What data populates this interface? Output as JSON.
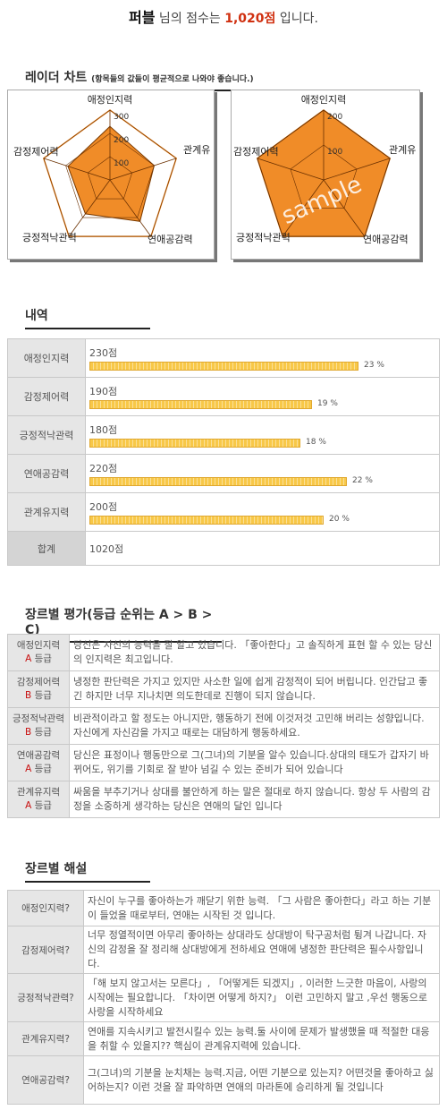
{
  "header": {
    "name": "퍼블",
    "mid": " 님의 점수는 ",
    "score": "1,020점",
    "end": " 입니다."
  },
  "radar": {
    "title": "레이더 차트",
    "note": "(항목들의 값들이 평균적으로 나와야 좋습니다.)",
    "watermark": "sample",
    "accent": "#f08c28"
  },
  "chart_data": [
    {
      "type": "radar",
      "categories": [
        "애정인지력",
        "관계유",
        "연애공감력",
        "긍정적낙관력",
        "감정제어력"
      ],
      "series": [
        {
          "values": [
            230,
            200,
            220,
            180,
            190
          ]
        }
      ],
      "ticks": [
        "100",
        "200",
        "300"
      ],
      "range": [
        0,
        300
      ]
    },
    {
      "type": "radar",
      "categories": [
        "애정인지력",
        "관계유",
        "연애공감력",
        "긍정적낙관력",
        "감정제어력"
      ],
      "series": [
        {
          "values": [
            200,
            200,
            200,
            200,
            200
          ]
        }
      ],
      "ticks": [
        "100",
        "200"
      ],
      "range": [
        0,
        200
      ]
    }
  ],
  "history": {
    "title": "내역",
    "rows": [
      {
        "label": "애정인지력",
        "value": "230점",
        "pct": "23 %",
        "ratio": 0.23
      },
      {
        "label": "감정제어력",
        "value": "190점",
        "pct": "19 %",
        "ratio": 0.19
      },
      {
        "label": "긍정적낙관력",
        "value": "180점",
        "pct": "18 %",
        "ratio": 0.18
      },
      {
        "label": "연애공감력",
        "value": "220점",
        "pct": "22 %",
        "ratio": 0.22
      },
      {
        "label": "관계유지력",
        "value": "200점",
        "pct": "20 %",
        "ratio": 0.2
      }
    ],
    "total_label": "합계",
    "total_value": "1020점"
  },
  "evaluation": {
    "title": "장르별 평가(등급 순위는 A > B > C)",
    "rows": [
      {
        "label": "애정인지력",
        "grade": "A",
        "grade_suffix": " 등급",
        "text": "당신은 자신의 능력을 잘 알고 있습니다. 「좋아한다」고 솔직하게 표현 할 수 있는 당신의 인지력은 최고입니다."
      },
      {
        "label": "감정제어력",
        "grade": "B",
        "grade_suffix": " 등급",
        "text": "냉정한 판단력은 가지고 있지만 사소한 일에 쉽게 감정적이 되어 버립니다. 인간답고 좋긴 하지만 너무 지나치면 의도한데로 진행이 되지 않습니다."
      },
      {
        "label": "긍정적낙관력",
        "grade": "B",
        "grade_prefix": "력 ",
        "grade_suffix": " 등급",
        "text": "비관적이라고 할 정도는 아니지만, 행동하기 전에 이것저것 고민해 버리는 성향입니다. 자신에게 자신감을 가지고 때로는 대담하게 행동하세요."
      },
      {
        "label": "연애공감력",
        "grade": "A",
        "grade_suffix": " 등급",
        "text": "당신은 표정이나 행동만으로 그(그녀)의 기분을 알수 있습니다.상대의 태도가 갑자기 바뀌어도, 위기를 기회로 잘 받아 넘길 수 있는 준비가 되어 있습니다"
      },
      {
        "label": "관계유지력",
        "grade": "A",
        "grade_suffix": " 등급",
        "text": "싸움을 부추기거나 상대를 불안하게 하는 말은 절대로 하지 않습니다. 항상 두 사람의 감정을 소중하게 생각하는 당신은 연애의 달인 입니다"
      }
    ]
  },
  "interpretation": {
    "title": "장르별 해설",
    "rows": [
      {
        "label": "애정인지력?",
        "text": "자신이 누구를 좋아하는가 깨닫기 위한 능력. 「그 사람은 좋아한다」라고 하는 기분이 들었을 때로부터, 연애는 시작된 것 입니다."
      },
      {
        "label": "감정제어력?",
        "text": "너무 정열적이면 아무리 좋아하는 상대라도 상대방이 탁구공처럼 튕겨 나갑니다. 자신의 감정을 잘 정리해 상대방에게 전하세요 연애에 냉정한 판단력은 필수사항입니다."
      },
      {
        "label": "긍정적낙관력?",
        "text": "「해 보지 않고서는 모른다」, 「어떻게든 되겠지」, 이러한 느긋한 마음이, 사랑의 시작에는 필요합니다. 「차이면 어떻게 하지?」 이런 고민하지 말고 ,우선 행동으로 사랑을 시작하세요"
      },
      {
        "label": "관계유지력?",
        "text": "연애를 지속시키고 발전시킬수 있는 능력.둘 사이에 문제가 발생했을 때 적절한 대응을 취할 수 있을지?? 핵심이 관계유지력에 있습니다."
      },
      {
        "label": "연애공감력?",
        "text": "그(그녀)의 기분을 눈치채는 능력.지금, 어떤 기분으로 있는지? 어떤것을 좋아하고 싫어하는지? 이런 것을 잘 파악하면 연애의 마라톤에 승리하게 될 것입니다"
      }
    ]
  }
}
